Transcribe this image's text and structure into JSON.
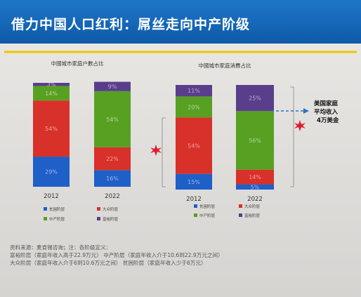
{
  "title": "借力中国人口红利：屌丝走向中产阶级",
  "chart_data": [
    {
      "type": "bar",
      "stacked": true,
      "title": "中國城市家庭户數占比",
      "categories": [
        "2012",
        "2022"
      ],
      "series": [
        {
          "name": "贫困阶层",
          "color": "#1f5fc8",
          "values": [
            29,
            16
          ]
        },
        {
          "name": "大众阶层",
          "color": "#d8312a",
          "values": [
            54,
            22
          ]
        },
        {
          "name": "中产阶层",
          "color": "#58a022",
          "values": [
            14,
            54
          ]
        },
        {
          "name": "富裕阶层",
          "color": "#5a3e8c",
          "values": [
            3,
            9
          ]
        }
      ],
      "labels": [
        [
          "29%",
          "54%",
          "14%",
          "3%"
        ],
        [
          "16%",
          "22%",
          "54%",
          "9%"
        ]
      ],
      "ylim": [
        0,
        100
      ]
    },
    {
      "type": "bar",
      "stacked": true,
      "title": "中國城市家庭消費占比",
      "categories": [
        "2012",
        "2022"
      ],
      "series": [
        {
          "name": "贫困阶层",
          "color": "#1f5fc8",
          "values": [
            15,
            5
          ]
        },
        {
          "name": "大众阶层",
          "color": "#d8312a",
          "values": [
            54,
            14
          ]
        },
        {
          "name": "中产阶层",
          "color": "#58a022",
          "values": [
            20,
            56
          ]
        },
        {
          "name": "富裕阶层",
          "color": "#5a3e8c",
          "values": [
            11,
            25
          ]
        }
      ],
      "labels": [
        [
          "15%",
          "54%",
          "20%",
          "11%"
        ],
        [
          "5%",
          "14%",
          "56%",
          "25%"
        ]
      ],
      "ylim": [
        0,
        100
      ]
    }
  ],
  "annotation": {
    "lines": [
      "美国家庭",
      "平均收入",
      "4万美金"
    ]
  },
  "notes": [
    "资料来源：麦肯锡咨询；注：各阶级定义：",
    "富裕阶层（家庭年收入高于22.9万元）   中产阶层（家庭年收入介于10.6到22.9万元之间）",
    "大众阶层（家庭年收入介于6到10.6万元之间）        贫困阶层（家庭年收入少于6万元）"
  ]
}
